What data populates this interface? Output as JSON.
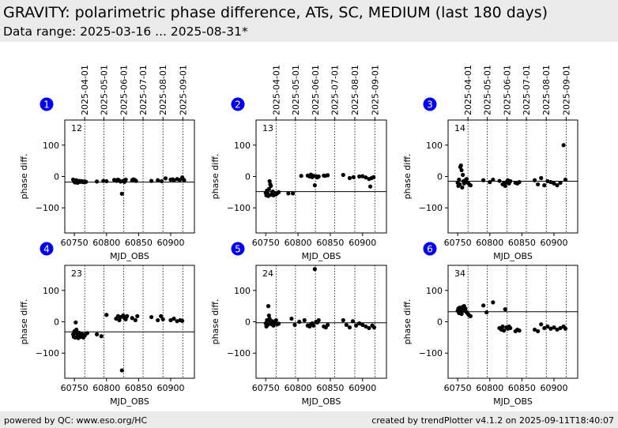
{
  "header": {
    "title": "GRAVITY: polarimetric phase difference, ATs, SC, MEDIUM (last 180 days)",
    "subtitle": "Data range: 2025-03-16 ... 2025-08-31*"
  },
  "footer": {
    "left": "powered by QC: www.eso.org/HC",
    "right": "created by trendPlotter v4.1.2 on 2025-09-11T18:40:07"
  },
  "colors": {
    "header_bg": "#ebebeb",
    "badge": "#0000ee",
    "points": "#000000"
  },
  "chart_data": [
    {
      "type": "scatter",
      "panel": "1",
      "label": "12",
      "xlabel": "MJD_OBS",
      "ylabel": "phase diff.",
      "xlim": [
        60735,
        60937
      ],
      "ylim": [
        -180,
        180
      ],
      "xticks": [
        60750,
        60800,
        60850,
        60900
      ],
      "yticks": [
        100,
        0,
        -100
      ],
      "top_ticks": [
        {
          "label": "2025-04-01",
          "mjd": 60766
        },
        {
          "label": "2025-05-01",
          "mjd": 60796
        },
        {
          "label": "2025-06-01",
          "mjd": 60827
        },
        {
          "label": "2025-07-01",
          "mjd": 60857
        },
        {
          "label": "2025-08-01",
          "mjd": 60888
        },
        {
          "label": "2025-09-01",
          "mjd": 60919
        }
      ],
      "reference_line": -18,
      "points": [
        [
          60748,
          -10
        ],
        [
          60749,
          -14
        ],
        [
          60750,
          -17
        ],
        [
          60751,
          -19
        ],
        [
          60752,
          -15
        ],
        [
          60753,
          -12
        ],
        [
          60754,
          -16
        ],
        [
          60755,
          -20
        ],
        [
          60756,
          -18
        ],
        [
          60758,
          -14
        ],
        [
          60760,
          -17
        ],
        [
          60762,
          -15
        ],
        [
          60764,
          -18
        ],
        [
          60766,
          -16
        ],
        [
          60768,
          -17
        ],
        [
          60785,
          -16
        ],
        [
          60795,
          -14
        ],
        [
          60800,
          -15
        ],
        [
          60812,
          -11
        ],
        [
          60814,
          -12
        ],
        [
          60816,
          -14
        ],
        [
          60818,
          -10
        ],
        [
          60820,
          -13
        ],
        [
          60822,
          -16
        ],
        [
          60824,
          -55
        ],
        [
          60826,
          -14
        ],
        [
          60828,
          -17
        ],
        [
          60829,
          -12
        ],
        [
          60830,
          -10
        ],
        [
          60840,
          -12
        ],
        [
          60842,
          -9
        ],
        [
          60844,
          -11
        ],
        [
          60846,
          -14
        ],
        [
          60870,
          -14
        ],
        [
          60880,
          -12
        ],
        [
          60886,
          -15
        ],
        [
          60892,
          -6
        ],
        [
          60900,
          -10
        ],
        [
          60903,
          -9
        ],
        [
          60905,
          -12
        ],
        [
          60910,
          -8
        ],
        [
          60914,
          -11
        ],
        [
          60918,
          -3
        ],
        [
          60919,
          -8
        ],
        [
          60921,
          -12
        ]
      ]
    },
    {
      "type": "scatter",
      "panel": "2",
      "label": "13",
      "xlabel": "MJD_OBS",
      "ylabel": "phase diff.",
      "xlim": [
        60735,
        60937
      ],
      "ylim": [
        -180,
        180
      ],
      "xticks": [
        60750,
        60800,
        60850,
        60900
      ],
      "yticks": [
        100,
        0,
        -100
      ],
      "top_ticks": [
        {
          "label": "2025-04-01",
          "mjd": 60766
        },
        {
          "label": "2025-05-01",
          "mjd": 60796
        },
        {
          "label": "2025-06-01",
          "mjd": 60827
        },
        {
          "label": "2025-07-01",
          "mjd": 60857
        },
        {
          "label": "2025-08-01",
          "mjd": 60888
        },
        {
          "label": "2025-09-01",
          "mjd": 60919
        }
      ],
      "reference_line": -48,
      "points": [
        [
          60750,
          -52
        ],
        [
          60751,
          -60
        ],
        [
          60752,
          -45
        ],
        [
          60753,
          -55
        ],
        [
          60754,
          -62
        ],
        [
          60755,
          -40
        ],
        [
          60756,
          -15
        ],
        [
          60757,
          -25
        ],
        [
          60758,
          -30
        ],
        [
          60759,
          -58
        ],
        [
          60760,
          -50
        ],
        [
          60761,
          -48
        ],
        [
          60762,
          -60
        ],
        [
          60764,
          -55
        ],
        [
          60766,
          -57
        ],
        [
          60768,
          -53
        ],
        [
          60770,
          -50
        ],
        [
          60785,
          -54
        ],
        [
          60792,
          -54
        ],
        [
          60805,
          2
        ],
        [
          60815,
          3
        ],
        [
          60818,
          0
        ],
        [
          60820,
          6
        ],
        [
          60822,
          -2
        ],
        [
          60824,
          2
        ],
        [
          60826,
          -28
        ],
        [
          60828,
          1
        ],
        [
          60830,
          -3
        ],
        [
          60832,
          0
        ],
        [
          60840,
          3
        ],
        [
          60842,
          2
        ],
        [
          60846,
          4
        ],
        [
          60870,
          5
        ],
        [
          60880,
          -5
        ],
        [
          60886,
          -2
        ],
        [
          60895,
          0
        ],
        [
          60900,
          1
        ],
        [
          60905,
          -3
        ],
        [
          60910,
          -8
        ],
        [
          60912,
          -32
        ],
        [
          60914,
          -5
        ],
        [
          60917,
          -2
        ]
      ]
    },
    {
      "type": "scatter",
      "panel": "3",
      "label": "14",
      "xlabel": "MJD_OBS",
      "ylabel": "phase diff.",
      "xlim": [
        60735,
        60937
      ],
      "ylim": [
        -180,
        180
      ],
      "xticks": [
        60750,
        60800,
        60850,
        60900
      ],
      "yticks": [
        100,
        0,
        -100
      ],
      "top_ticks": [
        {
          "label": "2025-04-01",
          "mjd": 60766
        },
        {
          "label": "2025-05-01",
          "mjd": 60796
        },
        {
          "label": "2025-06-01",
          "mjd": 60827
        },
        {
          "label": "2025-07-01",
          "mjd": 60857
        },
        {
          "label": "2025-08-01",
          "mjd": 60888
        },
        {
          "label": "2025-09-01",
          "mjd": 60919
        }
      ],
      "reference_line": -15,
      "points": [
        [
          60750,
          -20
        ],
        [
          60751,
          -30
        ],
        [
          60752,
          -10
        ],
        [
          60753,
          -25
        ],
        [
          60754,
          30
        ],
        [
          60755,
          35
        ],
        [
          60756,
          20
        ],
        [
          60757,
          -35
        ],
        [
          60758,
          5
        ],
        [
          60759,
          -15
        ],
        [
          60760,
          -22
        ],
        [
          60761,
          -18
        ],
        [
          60762,
          -12
        ],
        [
          60764,
          -8
        ],
        [
          60766,
          -20
        ],
        [
          60768,
          -25
        ],
        [
          60770,
          -28
        ],
        [
          60790,
          -12
        ],
        [
          60800,
          -18
        ],
        [
          60805,
          -10
        ],
        [
          60815,
          -14
        ],
        [
          60820,
          -25
        ],
        [
          60822,
          -20
        ],
        [
          60824,
          -30
        ],
        [
          60826,
          -18
        ],
        [
          60828,
          -12
        ],
        [
          60830,
          -22
        ],
        [
          60832,
          -15
        ],
        [
          60840,
          -20
        ],
        [
          60843,
          -22
        ],
        [
          60846,
          -18
        ],
        [
          60870,
          -12
        ],
        [
          60875,
          -25
        ],
        [
          60880,
          -5
        ],
        [
          60885,
          -28
        ],
        [
          60890,
          -15
        ],
        [
          60895,
          -18
        ],
        [
          60900,
          -22
        ],
        [
          60905,
          -28
        ],
        [
          60910,
          -20
        ],
        [
          60915,
          100
        ],
        [
          60918,
          -10
        ]
      ]
    },
    {
      "type": "scatter",
      "panel": "4",
      "label": "23",
      "xlabel": "MJD_OBS",
      "ylabel": "phase diff.",
      "xlim": [
        60735,
        60937
      ],
      "ylim": [
        -180,
        180
      ],
      "xticks": [
        60750,
        60800,
        60850,
        60900
      ],
      "yticks": [
        100,
        0,
        -100
      ],
      "top_ticks": [],
      "reference_line": -32,
      "points": [
        [
          60748,
          -40
        ],
        [
          60749,
          -48
        ],
        [
          60750,
          -30
        ],
        [
          60751,
          -50
        ],
        [
          60752,
          -2
        ],
        [
          60753,
          -25
        ],
        [
          60754,
          -38
        ],
        [
          60755,
          -45
        ],
        [
          60756,
          -52
        ],
        [
          60757,
          -35
        ],
        [
          60758,
          -42
        ],
        [
          60760,
          -48
        ],
        [
          60762,
          -40
        ],
        [
          60764,
          -50
        ],
        [
          60766,
          -44
        ],
        [
          60768,
          -38
        ],
        [
          60770,
          -36
        ],
        [
          60785,
          -40
        ],
        [
          60792,
          -46
        ],
        [
          60800,
          22
        ],
        [
          60815,
          10
        ],
        [
          60818,
          18
        ],
        [
          60820,
          5
        ],
        [
          60822,
          15
        ],
        [
          60824,
          -155
        ],
        [
          60826,
          20
        ],
        [
          60828,
          12
        ],
        [
          60830,
          8
        ],
        [
          60832,
          18
        ],
        [
          60840,
          12
        ],
        [
          60845,
          5
        ],
        [
          60848,
          18
        ],
        [
          60870,
          15
        ],
        [
          60880,
          5
        ],
        [
          60885,
          18
        ],
        [
          60888,
          8
        ],
        [
          60900,
          5
        ],
        [
          60905,
          10
        ],
        [
          60910,
          2
        ],
        [
          60915,
          5
        ],
        [
          60918,
          3
        ]
      ]
    },
    {
      "type": "scatter",
      "panel": "5",
      "label": "24",
      "xlabel": "MJD_OBS",
      "ylabel": "phase diff.",
      "xlim": [
        60735,
        60937
      ],
      "ylim": [
        -180,
        180
      ],
      "xticks": [
        60750,
        60800,
        60850,
        60900
      ],
      "yticks": [
        100,
        0,
        -100
      ],
      "top_ticks": [],
      "reference_line": -3,
      "points": [
        [
          60750,
          -5
        ],
        [
          60751,
          -15
        ],
        [
          60752,
          5
        ],
        [
          60753,
          -10
        ],
        [
          60754,
          50
        ],
        [
          60755,
          20
        ],
        [
          60756,
          10
        ],
        [
          60757,
          -2
        ],
        [
          60758,
          0
        ],
        [
          60759,
          -8
        ],
        [
          60760,
          2
        ],
        [
          60761,
          -5
        ],
        [
          60762,
          -12
        ],
        [
          60764,
          -3
        ],
        [
          60766,
          5
        ],
        [
          60768,
          -8
        ],
        [
          60770,
          -6
        ],
        [
          60790,
          10
        ],
        [
          60795,
          -10
        ],
        [
          60802,
          0
        ],
        [
          60810,
          5
        ],
        [
          60815,
          -12
        ],
        [
          60818,
          -15
        ],
        [
          60820,
          -8
        ],
        [
          60822,
          -5
        ],
        [
          60824,
          -12
        ],
        [
          60826,
          168
        ],
        [
          60828,
          0
        ],
        [
          60830,
          -2
        ],
        [
          60832,
          5
        ],
        [
          60840,
          -15
        ],
        [
          60843,
          -18
        ],
        [
          60846,
          -10
        ],
        [
          60870,
          5
        ],
        [
          60875,
          -10
        ],
        [
          60880,
          -18
        ],
        [
          60885,
          2
        ],
        [
          60890,
          -12
        ],
        [
          60895,
          -5
        ],
        [
          60900,
          -10
        ],
        [
          60905,
          -15
        ],
        [
          60910,
          -20
        ],
        [
          60915,
          -12
        ],
        [
          60918,
          -18
        ]
      ]
    },
    {
      "type": "scatter",
      "panel": "6",
      "label": "34",
      "xlabel": "MJD_OBS",
      "ylabel": "phase diff.",
      "xlim": [
        60735,
        60937
      ],
      "ylim": [
        -180,
        180
      ],
      "xticks": [
        60750,
        60800,
        60850,
        60900
      ],
      "yticks": [
        100,
        0,
        -100
      ],
      "top_ticks": [],
      "reference_line": 32,
      "points": [
        [
          60750,
          35
        ],
        [
          60751,
          42
        ],
        [
          60752,
          28
        ],
        [
          60753,
          45
        ],
        [
          60754,
          38
        ],
        [
          60755,
          30
        ],
        [
          60756,
          25
        ],
        [
          60757,
          40
        ],
        [
          60758,
          48
        ],
        [
          60759,
          35
        ],
        [
          60760,
          50
        ],
        [
          60762,
          42
        ],
        [
          60764,
          30
        ],
        [
          60766,
          25
        ],
        [
          60768,
          20
        ],
        [
          60770,
          18
        ],
        [
          60790,
          52
        ],
        [
          60795,
          30
        ],
        [
          60805,
          62
        ],
        [
          60815,
          -20
        ],
        [
          60818,
          -25
        ],
        [
          60820,
          -15
        ],
        [
          60822,
          -28
        ],
        [
          60824,
          40
        ],
        [
          60826,
          -18
        ],
        [
          60828,
          -22
        ],
        [
          60830,
          -15
        ],
        [
          60832,
          -20
        ],
        [
          60840,
          -30
        ],
        [
          60843,
          -25
        ],
        [
          60846,
          -28
        ],
        [
          60870,
          -25
        ],
        [
          60875,
          -30
        ],
        [
          60880,
          -8
        ],
        [
          60885,
          -20
        ],
        [
          60890,
          -15
        ],
        [
          60895,
          -22
        ],
        [
          60900,
          -18
        ],
        [
          60905,
          -25
        ],
        [
          60910,
          -20
        ],
        [
          60915,
          -15
        ],
        [
          60918,
          -22
        ]
      ]
    }
  ]
}
